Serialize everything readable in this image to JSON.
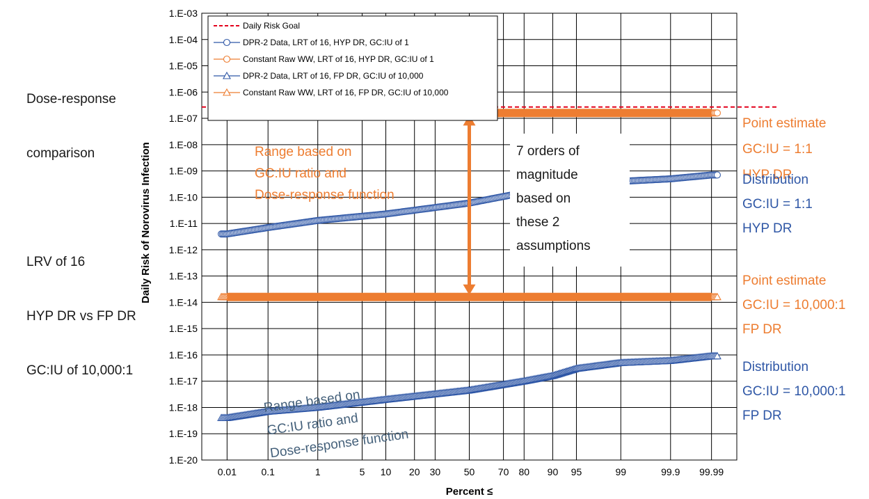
{
  "side_note": {
    "line1": "Dose-response",
    "line2": "comparison",
    "line3": "LRV of 16",
    "line4": "HYP DR vs FP DR",
    "line5": "GC:IU of 10,000:1"
  },
  "chart_data": {
    "type": "scatter",
    "xlabel": "Percent ≤",
    "ylabel": "Daily Risk of Norovirus Infection",
    "x_scale": "normal-probability",
    "y_scale": "log",
    "ylim": [
      1e-20,
      0.001
    ],
    "xlim": [
      0.002,
      99.998
    ],
    "grid": true,
    "legend_position": "top-left",
    "x_ticks": [
      {
        "v": 0.01,
        "label": "0.01"
      },
      {
        "v": 0.1,
        "label": "0.1"
      },
      {
        "v": 1,
        "label": "1"
      },
      {
        "v": 5,
        "label": "5"
      },
      {
        "v": 10,
        "label": "10"
      },
      {
        "v": 20,
        "label": "20"
      },
      {
        "v": 30,
        "label": "30"
      },
      {
        "v": 50,
        "label": "50"
      },
      {
        "v": 70,
        "label": "70"
      },
      {
        "v": 80,
        "label": "80"
      },
      {
        "v": 90,
        "label": "90"
      },
      {
        "v": 95,
        "label": "95"
      },
      {
        "v": 99,
        "label": "99"
      },
      {
        "v": 99.9,
        "label": "99.9"
      },
      {
        "v": 99.99,
        "label": "99.99"
      }
    ],
    "y_ticks": [
      {
        "e": -3,
        "label": "1.E-03"
      },
      {
        "e": -4,
        "label": "1.E-04"
      },
      {
        "e": -5,
        "label": "1.E-05"
      },
      {
        "e": -6,
        "label": "1.E-06"
      },
      {
        "e": -7,
        "label": "1.E-07"
      },
      {
        "e": -8,
        "label": "1.E-08"
      },
      {
        "e": -9,
        "label": "1.E-09"
      },
      {
        "e": -10,
        "label": "1.E-10"
      },
      {
        "e": -11,
        "label": "1.E-11"
      },
      {
        "e": -12,
        "label": "1.E-12"
      },
      {
        "e": -13,
        "label": "1.E-13"
      },
      {
        "e": -14,
        "label": "1.E-14"
      },
      {
        "e": -15,
        "label": "1.E-15"
      },
      {
        "e": -16,
        "label": "1.E-16"
      },
      {
        "e": -17,
        "label": "1.E-17"
      },
      {
        "e": -18,
        "label": "1.E-18"
      },
      {
        "e": -19,
        "label": "1.E-19"
      },
      {
        "e": -20,
        "label": "1.E-20"
      }
    ],
    "goal_line": {
      "name": "Daily Risk Goal",
      "value": 2.7e-07,
      "color": "#e3001b"
    },
    "series": [
      {
        "name": "DPR-2 Data, LRT of 16, HYP DR, GC:IU of 1",
        "marker": "circle",
        "color": "#2f57a6",
        "points": [
          [
            0.01,
            4e-12
          ],
          [
            0.1,
            7e-12
          ],
          [
            1,
            1.3e-11
          ],
          [
            10,
            2.3e-11
          ],
          [
            50,
            6e-11
          ],
          [
            80,
            1.5e-10
          ],
          [
            95,
            2.5e-10
          ],
          [
            99,
            4e-10
          ],
          [
            99.9,
            5e-10
          ],
          [
            99.99,
            7e-10
          ]
        ]
      },
      {
        "name": "Constant Raw WW, LRT of 16, HYP DR, GC:IU of 1",
        "marker": "circle",
        "color": "#ed7d31",
        "value": 1.6e-07
      },
      {
        "name": "DPR-2 Data, LRT of 16, FP DR, GC:IU of 10,000",
        "marker": "triangle",
        "color": "#2f57a6",
        "points": [
          [
            0.01,
            4e-19
          ],
          [
            0.1,
            7e-19
          ],
          [
            1,
            1e-18
          ],
          [
            10,
            2e-18
          ],
          [
            50,
            4.5e-18
          ],
          [
            80,
            1e-17
          ],
          [
            90,
            1.6e-17
          ],
          [
            95,
            3e-17
          ],
          [
            99,
            5e-17
          ],
          [
            99.9,
            6e-17
          ],
          [
            99.99,
            9e-17
          ]
        ]
      },
      {
        "name": "Constant Raw WW, LRT of 16, FP DR, GC:IU of 10,000",
        "marker": "triangle",
        "color": "#ed7d31",
        "value": 1.6e-14
      }
    ],
    "annotations": {
      "range_top": [
        "Range based on",
        "GC:IU ratio and",
        "Dose-response function"
      ],
      "range_bottom": [
        "Range based on",
        "GC:IU ratio and",
        "Dose-response function"
      ],
      "orders": [
        "7 orders of",
        "magnitude",
        "based on",
        "these 2",
        "assumptions"
      ],
      "pe_top": [
        "Point estimate",
        "GC:IU = 1:1",
        "HYP DR"
      ],
      "dist_top": [
        "Distribution",
        "GC:IU = 1:1",
        "HYP DR"
      ],
      "pe_bottom": [
        "Point estimate",
        "GC:IU = 10,000:1",
        "FP DR"
      ],
      "dist_bottom": [
        "Distribution",
        "GC:IU = 10,000:1",
        "FP DR"
      ]
    },
    "annotation_colors": {
      "orange": "#ed7d31",
      "blue": "#2f57a6",
      "slate": "#44607a"
    }
  }
}
